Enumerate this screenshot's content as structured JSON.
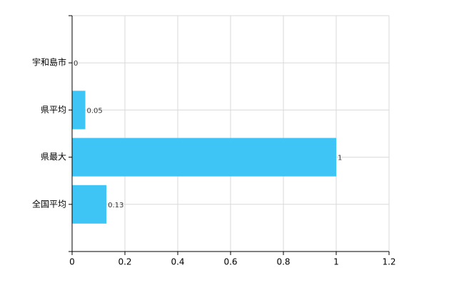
{
  "chart_data": {
    "type": "bar",
    "orientation": "horizontal",
    "categories": [
      "宇和島市",
      "県平均",
      "県最大",
      "全国平均"
    ],
    "values": [
      0,
      0.05,
      1,
      0.13
    ],
    "color": "#3ec4f5",
    "xlim": [
      0,
      1.2
    ],
    "xticks": [
      0,
      0.2,
      0.4,
      0.6,
      0.8,
      1,
      1.2
    ],
    "grid": true
  }
}
